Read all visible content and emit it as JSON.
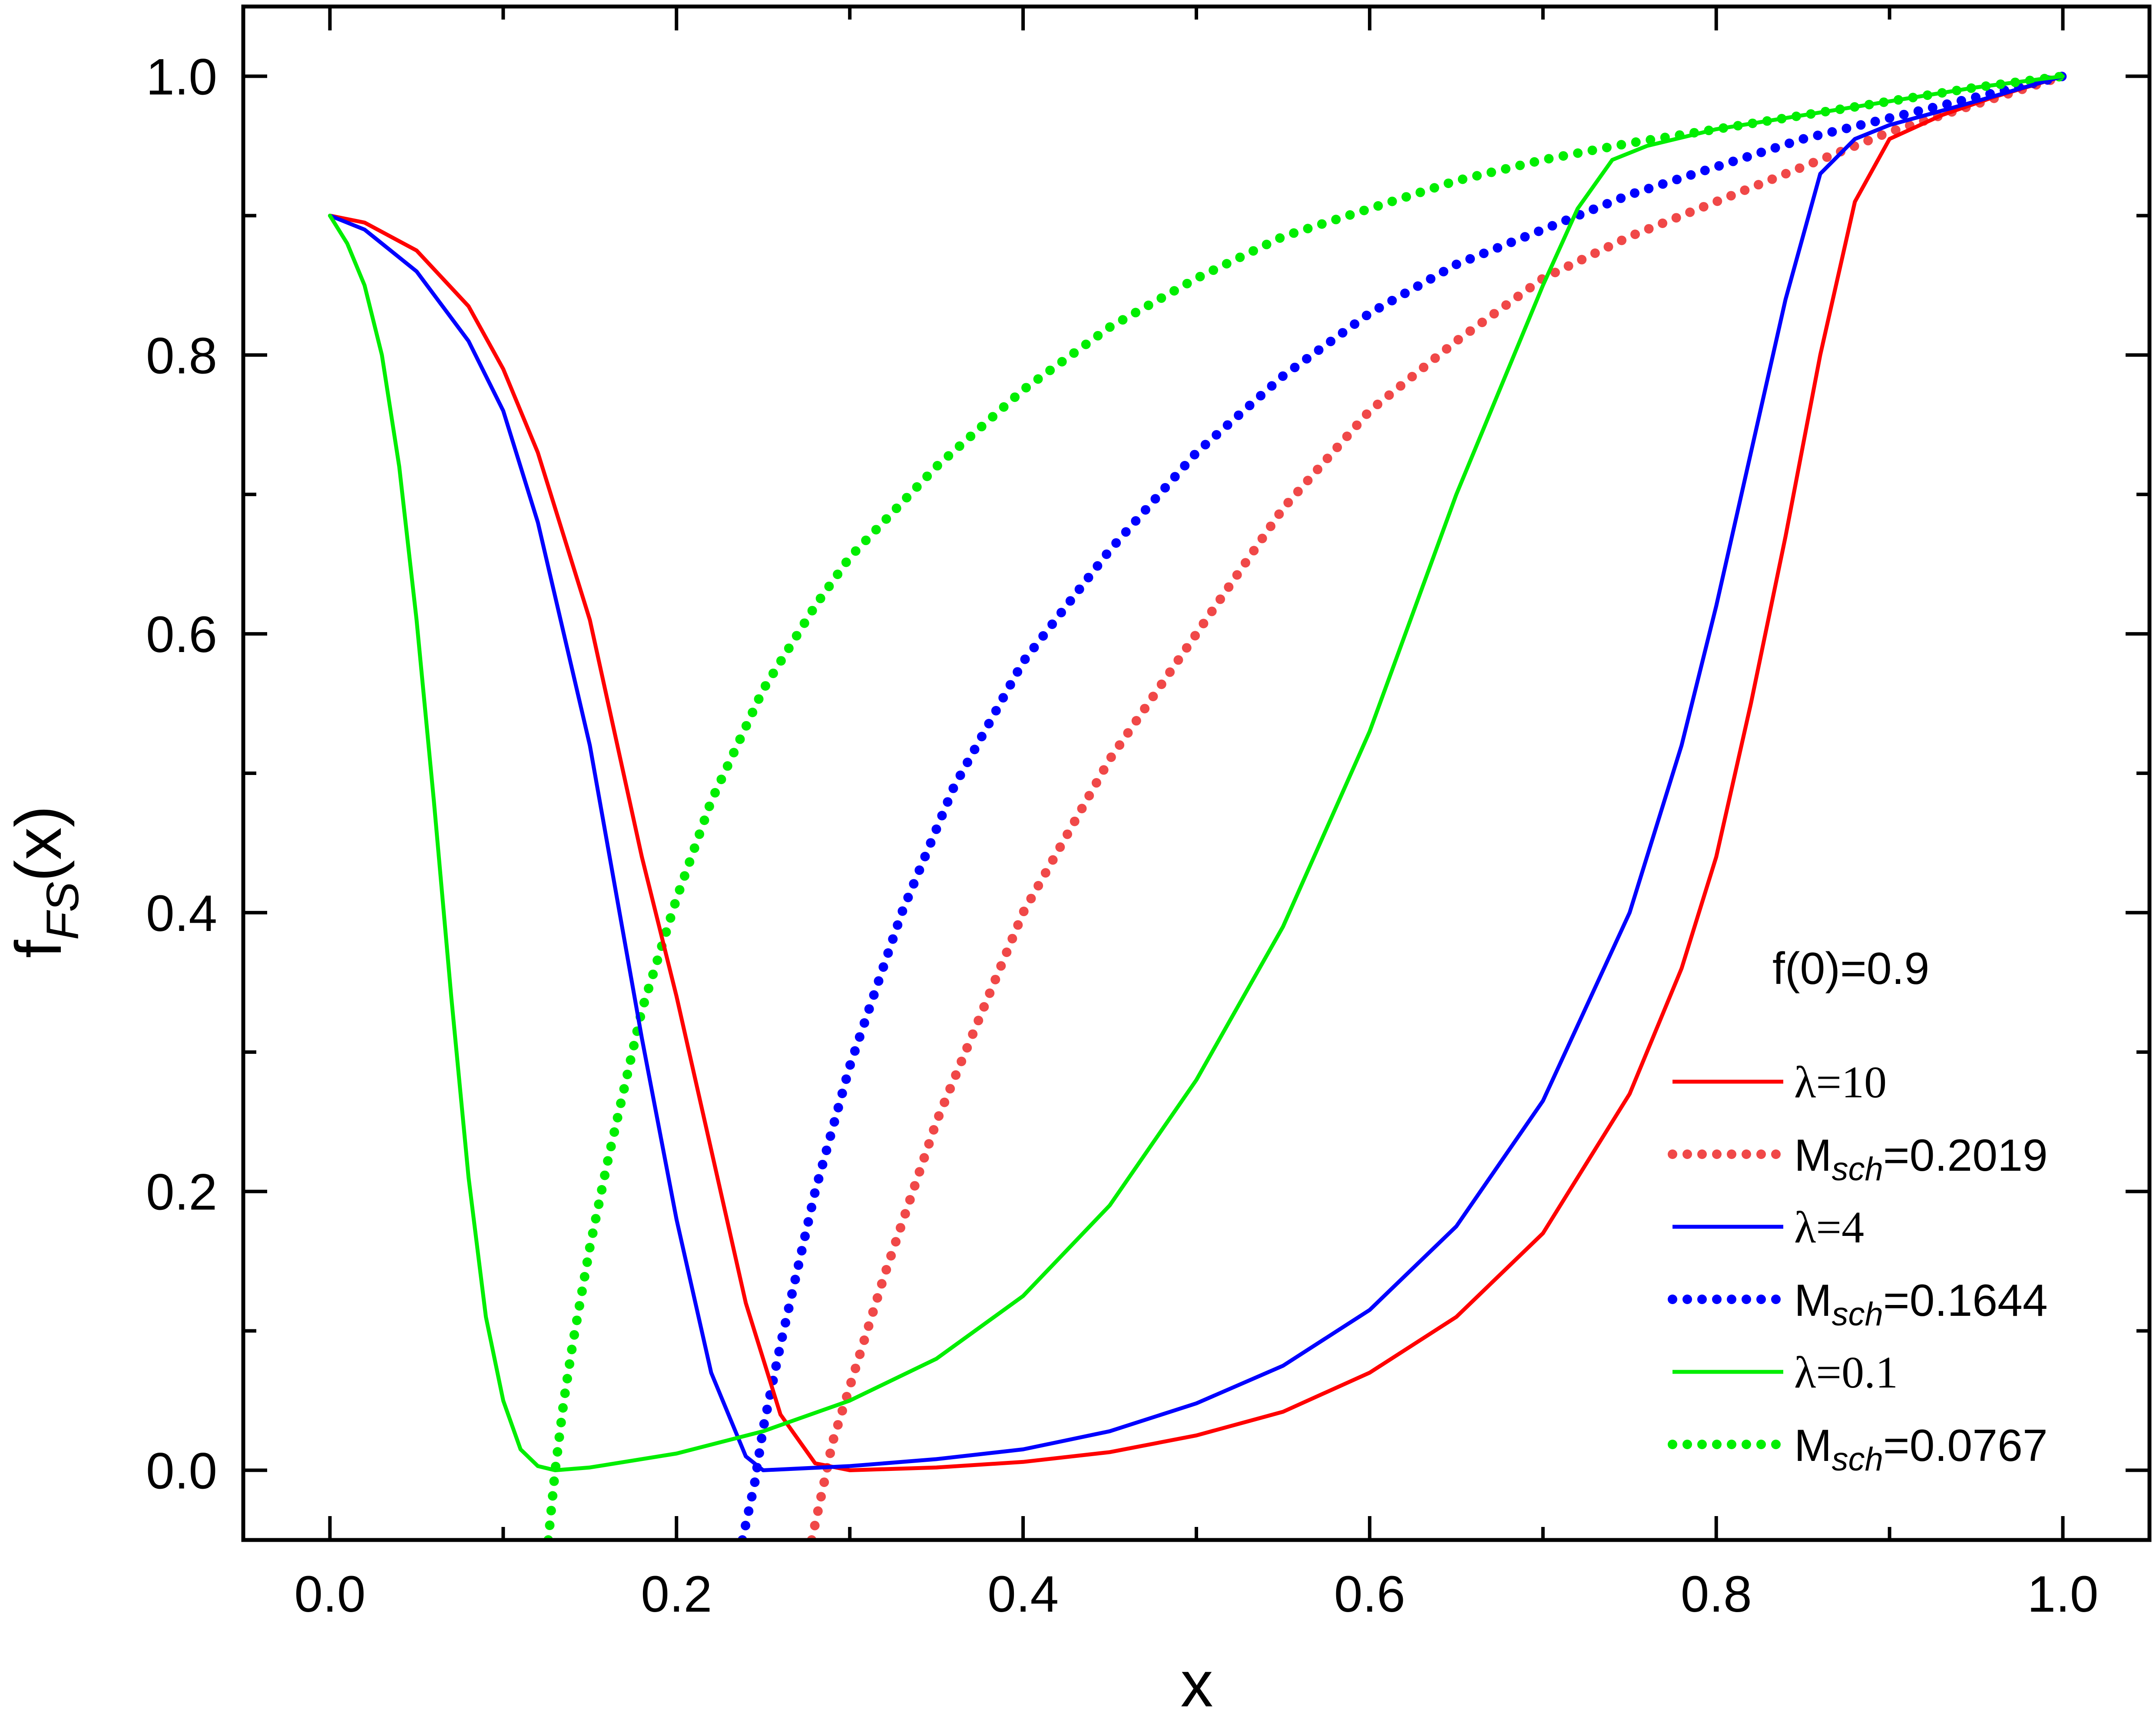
{
  "chart_data": {
    "type": "line",
    "xlabel": "x",
    "ylabel": {
      "main": "f",
      "sub": "FS",
      "tail": "(x)"
    },
    "xlim": [
      -0.05,
      1.05
    ],
    "ylim": [
      -0.05,
      1.05
    ],
    "xticks": [
      0.0,
      0.2,
      0.4,
      0.6,
      0.8,
      1.0
    ],
    "xtick_labels": [
      "0.0",
      "0.2",
      "0.4",
      "0.6",
      "0.8",
      "1.0"
    ],
    "yticks": [
      0.0,
      0.2,
      0.4,
      0.6,
      0.8,
      1.0
    ],
    "ytick_labels": [
      "0.0",
      "0.2",
      "0.4",
      "0.6",
      "0.8",
      "1.0"
    ],
    "grid": false,
    "legend_position": "bottom-right",
    "annotation": "f(0)=0.9",
    "series": [
      {
        "name": "λ=10",
        "color": "#ff0000",
        "style": "solid",
        "x": [
          0.0,
          0.02,
          0.05,
          0.08,
          0.1,
          0.12,
          0.15,
          0.18,
          0.2,
          0.22,
          0.24,
          0.26,
          0.28,
          0.3,
          0.35,
          0.4,
          0.45,
          0.5,
          0.55,
          0.6,
          0.65,
          0.7,
          0.75,
          0.78,
          0.8,
          0.82,
          0.84,
          0.86,
          0.88,
          0.9,
          0.93,
          0.96,
          1.0
        ],
        "y": [
          0.9,
          0.895,
          0.875,
          0.835,
          0.79,
          0.73,
          0.61,
          0.44,
          0.34,
          0.23,
          0.12,
          0.04,
          0.005,
          0.0,
          0.002,
          0.006,
          0.013,
          0.025,
          0.042,
          0.07,
          0.11,
          0.17,
          0.27,
          0.36,
          0.44,
          0.55,
          0.67,
          0.8,
          0.91,
          0.955,
          0.972,
          0.985,
          1.0
        ]
      },
      {
        "name": "M_sch=0.2019",
        "label_main": "M",
        "label_sub": "sch",
        "label_tail": "=0.2019",
        "color": "#f04848",
        "style": "dotted",
        "x": [
          0.278,
          0.285,
          0.29,
          0.3,
          0.32,
          0.35,
          0.38,
          0.4,
          0.45,
          0.5,
          0.55,
          0.6,
          0.65,
          0.7,
          0.75,
          0.8,
          0.85,
          0.9,
          0.95,
          1.0
        ],
        "y": [
          -0.05,
          -0.01,
          0.02,
          0.06,
          0.14,
          0.25,
          0.34,
          0.4,
          0.51,
          0.6,
          0.69,
          0.76,
          0.81,
          0.855,
          0.885,
          0.91,
          0.935,
          0.96,
          0.98,
          1.0
        ]
      },
      {
        "name": "λ=4",
        "color": "#0000ff",
        "style": "solid",
        "x": [
          0.0,
          0.02,
          0.05,
          0.08,
          0.1,
          0.12,
          0.15,
          0.18,
          0.2,
          0.22,
          0.24,
          0.25,
          0.3,
          0.35,
          0.4,
          0.45,
          0.5,
          0.55,
          0.6,
          0.65,
          0.7,
          0.75,
          0.78,
          0.8,
          0.82,
          0.84,
          0.86,
          0.88,
          0.9,
          0.95,
          1.0
        ],
        "y": [
          0.9,
          0.89,
          0.86,
          0.81,
          0.76,
          0.68,
          0.52,
          0.31,
          0.18,
          0.07,
          0.01,
          0.0,
          0.003,
          0.008,
          0.015,
          0.028,
          0.048,
          0.075,
          0.115,
          0.175,
          0.265,
          0.4,
          0.52,
          0.62,
          0.73,
          0.84,
          0.93,
          0.955,
          0.965,
          0.982,
          1.0
        ]
      },
      {
        "name": "M_sch=0.1644",
        "label_main": "M",
        "label_sub": "sch",
        "label_tail": "=0.1644",
        "color": "#0000ff",
        "style": "dotted",
        "x": [
          0.238,
          0.245,
          0.25,
          0.26,
          0.28,
          0.3,
          0.33,
          0.36,
          0.4,
          0.45,
          0.5,
          0.55,
          0.6,
          0.65,
          0.7,
          0.75,
          0.8,
          0.85,
          0.9,
          0.95,
          1.0
        ],
        "y": [
          -0.05,
          -0.01,
          0.03,
          0.09,
          0.2,
          0.29,
          0.4,
          0.49,
          0.58,
          0.66,
          0.73,
          0.785,
          0.83,
          0.865,
          0.89,
          0.915,
          0.935,
          0.955,
          0.97,
          0.985,
          1.0
        ]
      },
      {
        "name": "λ=0.1",
        "color": "#00ee00",
        "style": "solid",
        "x": [
          0.0,
          0.01,
          0.02,
          0.03,
          0.04,
          0.05,
          0.06,
          0.07,
          0.08,
          0.09,
          0.1,
          0.11,
          0.12,
          0.13,
          0.15,
          0.2,
          0.25,
          0.3,
          0.35,
          0.4,
          0.45,
          0.5,
          0.55,
          0.6,
          0.65,
          0.68,
          0.7,
          0.72,
          0.74,
          0.76,
          0.8,
          0.85,
          0.9,
          0.95,
          1.0
        ],
        "y": [
          0.9,
          0.88,
          0.85,
          0.8,
          0.72,
          0.61,
          0.48,
          0.34,
          0.21,
          0.11,
          0.05,
          0.015,
          0.003,
          0.0,
          0.002,
          0.012,
          0.028,
          0.05,
          0.08,
          0.125,
          0.19,
          0.28,
          0.39,
          0.53,
          0.7,
          0.79,
          0.85,
          0.905,
          0.94,
          0.95,
          0.962,
          0.972,
          0.982,
          0.992,
          1.0
        ]
      },
      {
        "name": "M_sch=0.0767",
        "label_main": "M",
        "label_sub": "sch",
        "label_tail": "=0.0767",
        "color": "#00ee00",
        "style": "dotted",
        "x": [
          0.126,
          0.13,
          0.135,
          0.14,
          0.15,
          0.16,
          0.18,
          0.2,
          0.22,
          0.25,
          0.28,
          0.3,
          0.35,
          0.4,
          0.45,
          0.5,
          0.55,
          0.6,
          0.65,
          0.7,
          0.75,
          0.8,
          0.85,
          0.9,
          0.95,
          1.0
        ],
        "y": [
          -0.05,
          0.0,
          0.05,
          0.09,
          0.16,
          0.22,
          0.33,
          0.41,
          0.48,
          0.56,
          0.62,
          0.655,
          0.72,
          0.775,
          0.82,
          0.855,
          0.885,
          0.905,
          0.925,
          0.94,
          0.952,
          0.962,
          0.972,
          0.982,
          0.992,
          1.0
        ]
      }
    ]
  }
}
